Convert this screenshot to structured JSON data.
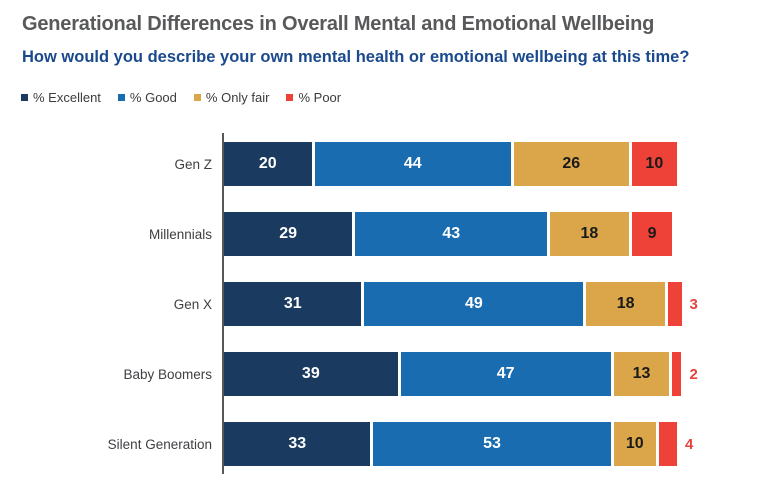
{
  "title": "Generational Differences in Overall Mental and Emotional Wellbeing",
  "subtitle": "How would you describe your own mental health or emotional wellbeing at this time?",
  "colors": {
    "title_text": "#58595b",
    "subtitle_text": "#1a4a8d",
    "category_label_text": "#3f4043",
    "axis_line": "#58585a",
    "background": "#ffffff"
  },
  "chart_data": {
    "type": "bar",
    "orientation": "horizontal",
    "stacked": true,
    "units": "percent",
    "categories": [
      "Gen Z",
      "Millennials",
      "Gen X",
      "Baby Boomers",
      "Silent Generation"
    ],
    "series": [
      {
        "name": "% Excellent",
        "color": "#1b3a5f",
        "label_color": "#ffffff",
        "values": [
          20,
          29,
          31,
          39,
          33
        ]
      },
      {
        "name": "% Good",
        "color": "#1a6cb0",
        "label_color": "#ffffff",
        "values": [
          44,
          43,
          49,
          47,
          53
        ]
      },
      {
        "name": "% Only fair",
        "color": "#dba64a",
        "label_color": "#1a1a1a",
        "values": [
          26,
          18,
          18,
          13,
          10
        ]
      },
      {
        "name": "% Poor",
        "color": "#ee4238",
        "label_color": "#1a1a1a",
        "values": [
          10,
          9,
          3,
          2,
          4
        ]
      }
    ],
    "small_value_labels": {
      "threshold": 5,
      "position": "outside-right",
      "color": "#e8433c"
    },
    "xlim": [
      0,
      100
    ],
    "grid": false,
    "legend_position": "top-left",
    "value_labels": "inside-center"
  }
}
